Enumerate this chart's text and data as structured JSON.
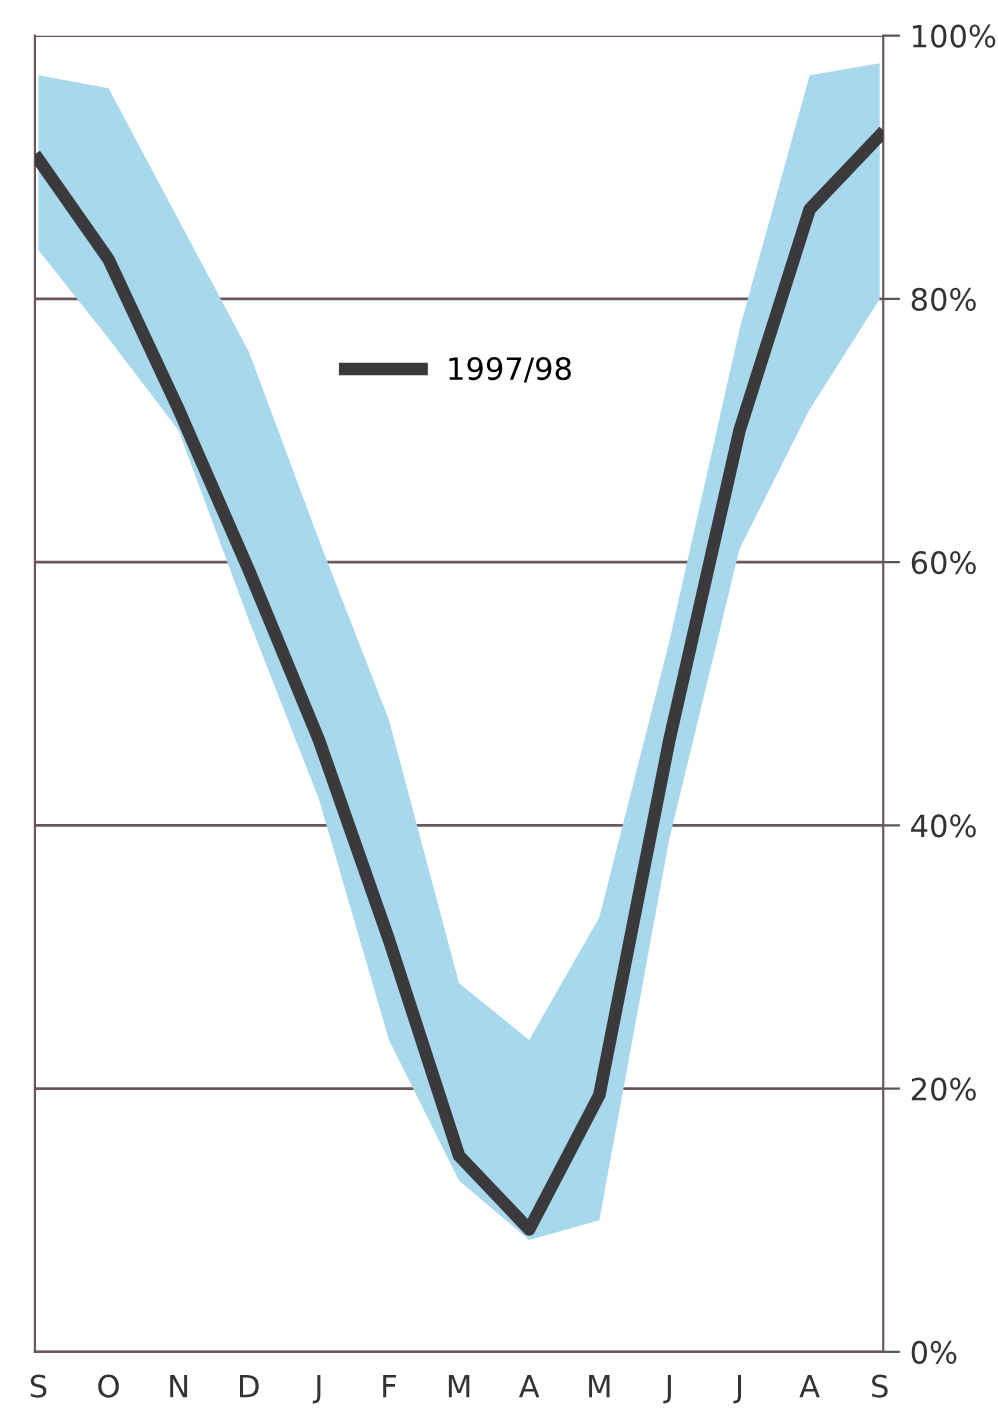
{
  "chart_data": {
    "type": "line",
    "categories": [
      "S",
      "O",
      "N",
      "D",
      "J",
      "F",
      "M",
      "A",
      "M",
      "J",
      "J",
      "A",
      "S"
    ],
    "series": [
      {
        "name": "1997/98",
        "color": "#3a3a3c",
        "values": [
          90.6,
          83,
          71.6,
          59.4,
          46.5,
          31.3,
          14.9,
          9.3,
          19.5,
          46.5,
          70,
          86.8,
          92.4
        ],
        "lower": [
          83.7,
          77,
          70,
          55.6,
          42,
          23.7,
          13,
          8.5,
          10,
          39,
          61,
          71.6,
          80
        ],
        "upper": [
          97,
          96,
          86,
          76,
          61.7,
          48,
          28,
          23.7,
          33,
          54,
          77.7,
          97,
          97.9
        ]
      }
    ],
    "ylim": [
      0,
      100
    ],
    "yticks": [
      {
        "value": 0,
        "label": "0%"
      },
      {
        "value": 20,
        "label": "20%"
      },
      {
        "value": 40,
        "label": "40%"
      },
      {
        "value": 60,
        "label": "60%"
      },
      {
        "value": 80,
        "label": "80%"
      },
      {
        "value": 100,
        "label": "100%"
      }
    ],
    "grid": "y",
    "legend": "top center",
    "marker": "none",
    "line_style": "solid"
  }
}
